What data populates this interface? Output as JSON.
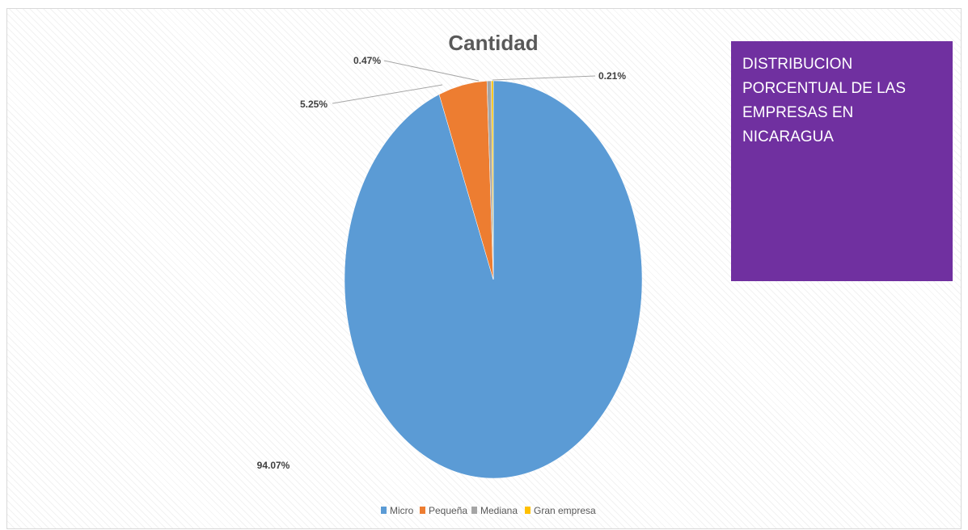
{
  "chart_data": {
    "type": "pie",
    "title": "Cantidad",
    "categories": [
      "Micro",
      "Pequeña",
      "Mediana",
      "Gran empresa"
    ],
    "values": [
      94.07,
      5.25,
      0.47,
      0.21
    ],
    "labels": [
      "94.07%",
      "5.25%",
      "0.47%",
      "0.21%"
    ],
    "colors": [
      "#5b9bd5",
      "#ed7d31",
      "#a5a5a5",
      "#ffc000"
    ],
    "legend_position": "bottom"
  },
  "info_box": {
    "text": "DISTRIBUCION\nPORCENTUAL DE LAS\nEMPRESAS EN NICARAGUA",
    "background": "#7030a0"
  }
}
